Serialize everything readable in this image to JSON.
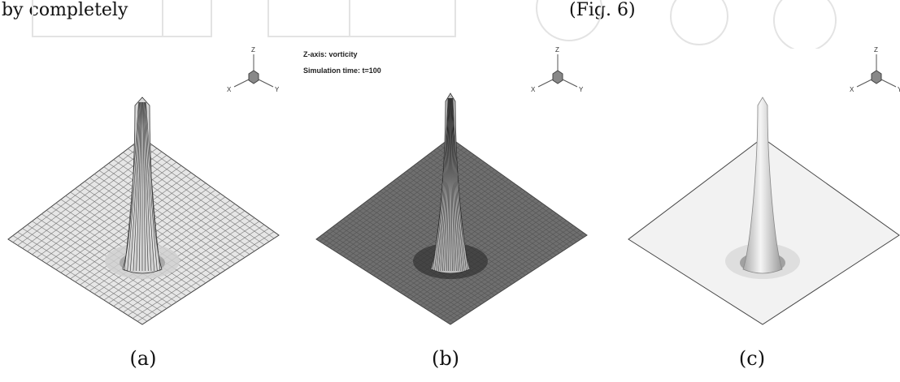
{
  "top_text": "by completely",
  "top_text_right": "(Fig. 6)",
  "plot_labels": {
    "z_axis": "Z-axis: vorticity",
    "sim_time": "Simulation time: t=100"
  },
  "triad": {
    "x": "X",
    "y": "Y",
    "z": "Z"
  },
  "panels": [
    {
      "caption": "(a)",
      "style": "coarse-mesh"
    },
    {
      "caption": "(b)",
      "style": "fine-mesh"
    },
    {
      "caption": "(c)",
      "style": "shaded-surface"
    }
  ]
}
